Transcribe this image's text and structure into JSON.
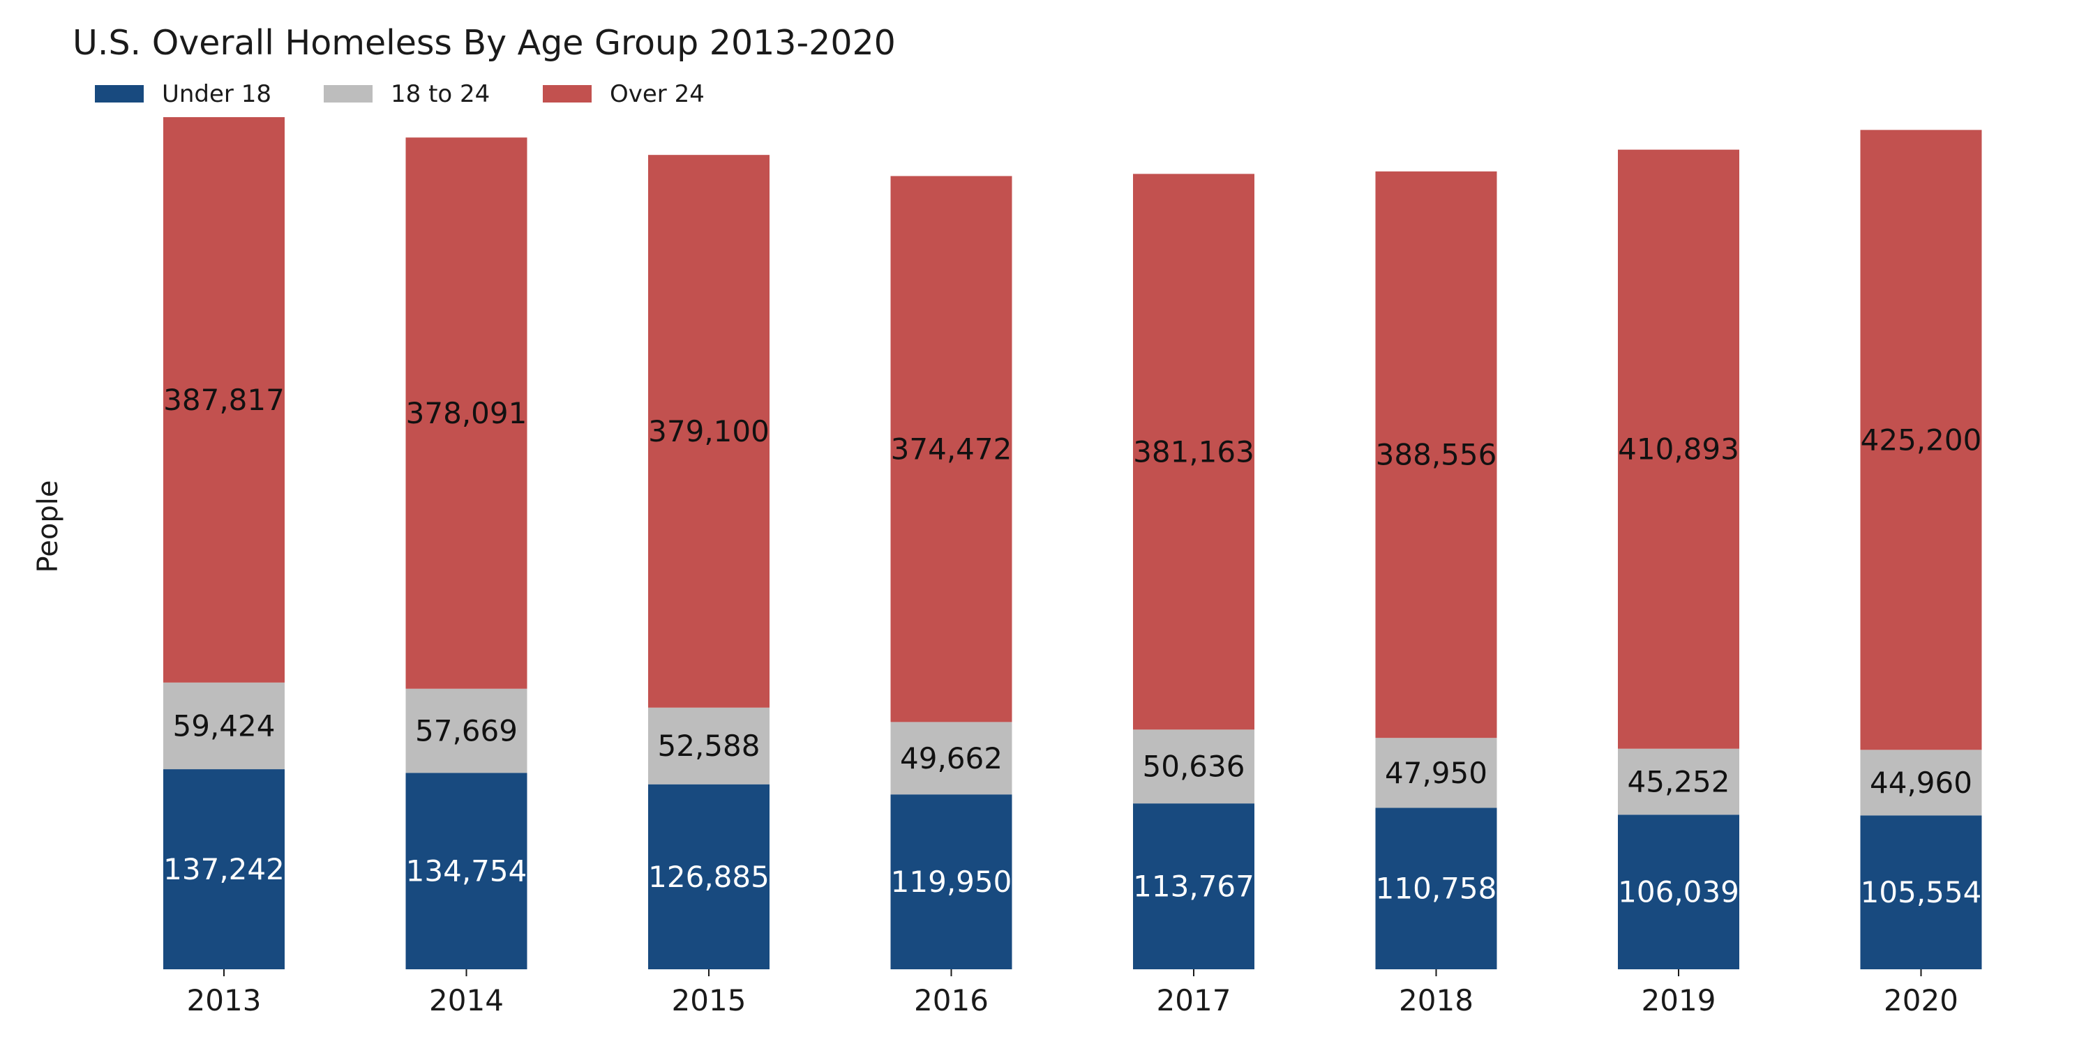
{
  "chart_data": {
    "type": "bar",
    "stacked": true,
    "title": "U.S. Overall Homeless By Age Group 2013-2020",
    "xlabel": "",
    "ylabel": "People",
    "legend_position": "top-left",
    "grid": false,
    "ylim": [
      0,
      584483
    ],
    "categories": [
      "2013",
      "2014",
      "2015",
      "2016",
      "2017",
      "2018",
      "2019",
      "2020"
    ],
    "series": [
      {
        "name": "Under 18",
        "color": "#184a7f",
        "label_color": "#ffffff",
        "values": [
          137242,
          134754,
          126885,
          119950,
          113767,
          110758,
          106039,
          105554
        ],
        "labels": [
          "137,242",
          "134,754",
          "126,885",
          "119,950",
          "113,767",
          "110,758",
          "106,039",
          "105,554"
        ]
      },
      {
        "name": "18 to 24",
        "color": "#bdbdbd",
        "label_color": "#111111",
        "values": [
          59424,
          57669,
          52588,
          49662,
          50636,
          47950,
          45252,
          44960
        ],
        "labels": [
          "59,424",
          "57,669",
          "52,588",
          "49,662",
          "50,636",
          "47,950",
          "45,252",
          "44,960"
        ]
      },
      {
        "name": "Over 24",
        "color": "#c2514f",
        "label_color": "#111111",
        "values": [
          387817,
          378091,
          379100,
          374472,
          381163,
          388556,
          410893,
          425200
        ],
        "labels": [
          "387,817",
          "378,091",
          "379,100",
          "374,472",
          "381,163",
          "388,556",
          "410,893",
          "425,200"
        ]
      }
    ]
  }
}
